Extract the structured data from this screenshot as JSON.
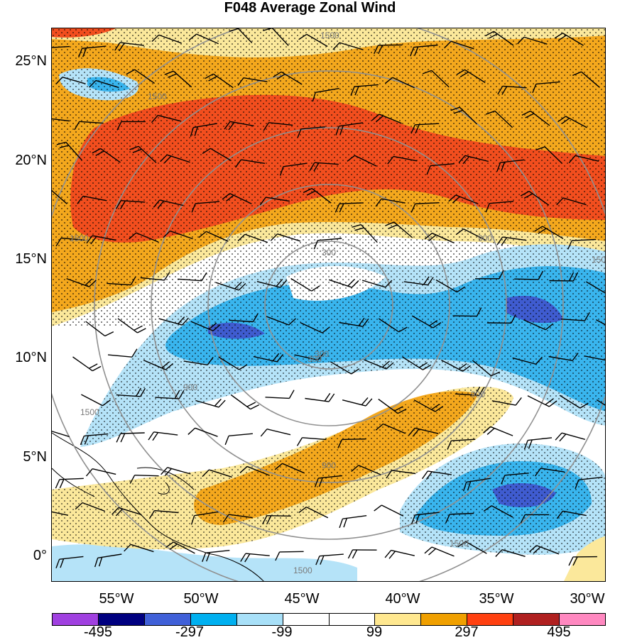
{
  "title": "F048 Average Zonal Wind",
  "lat_labels": [
    "25°N",
    "20°N",
    "15°N",
    "10°N",
    "5°N",
    "0°"
  ],
  "lon_labels": [
    "55°W",
    "50°W",
    "45°W",
    "40°W",
    "35°W",
    "30°W"
  ],
  "contour_labels": [
    "1500",
    "1500",
    "1500",
    "1500",
    "1500",
    "1500",
    "1500",
    "900",
    "900",
    "900",
    "900",
    "300",
    "300",
    "300"
  ],
  "colorbar": {
    "colors": [
      "#a040e0",
      "#000080",
      "#4060d8",
      "#00b0f0",
      "#a8e0f8",
      "#ffffff",
      "#ffffff",
      "#ffe890",
      "#f0a000",
      "#ff4010",
      "#b02020",
      "#ff88c0"
    ],
    "labels": [
      "-495",
      "-297",
      "-99",
      "99",
      "297",
      "495"
    ]
  },
  "map_colors": {
    "ocean_positive_light": "#fbe89b",
    "ocean_positive_mid": "#f4a81d",
    "ocean_positive_strong": "#f24e1e",
    "negative_light": "#b5e3f8",
    "negative_mid": "#39b5ee",
    "negative_strong": "#3f5cd0",
    "range_ring": "#909090"
  }
}
